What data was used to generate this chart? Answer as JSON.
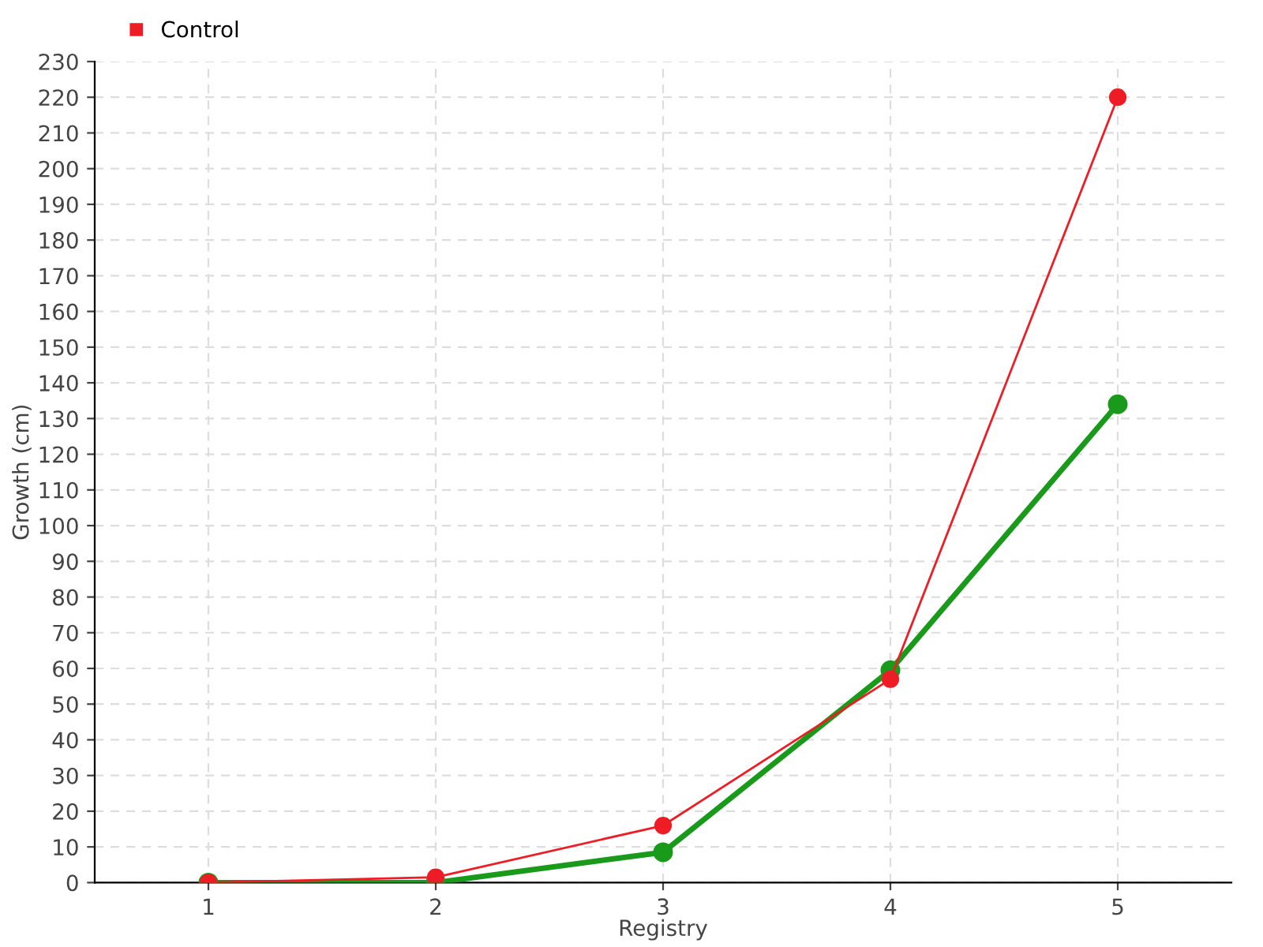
{
  "chart_data": {
    "type": "line",
    "xlabel": "Registry",
    "ylabel": "Growth (cm)",
    "x": [
      1,
      2,
      3,
      4,
      5
    ],
    "series": [
      {
        "color": "#ee1c25",
        "values": [
          0,
          1.5,
          16,
          57,
          220
        ],
        "name": "Control"
      },
      {
        "color": "#1a9a1a",
        "values": [
          0,
          0,
          8.5,
          59.5,
          134
        ]
      }
    ],
    "xlim": [
      0.5,
      5.5
    ],
    "xticks": [
      1,
      2,
      3,
      4,
      5
    ],
    "ylim": [
      0,
      230
    ],
    "yticks": [
      0,
      10,
      20,
      30,
      40,
      50,
      60,
      70,
      80,
      90,
      100,
      110,
      120,
      130,
      140,
      150,
      160,
      170,
      180,
      190,
      200,
      210,
      220,
      230
    ],
    "grid": true,
    "legend": "top left",
    "marker": "circle",
    "line_style": "solid"
  }
}
